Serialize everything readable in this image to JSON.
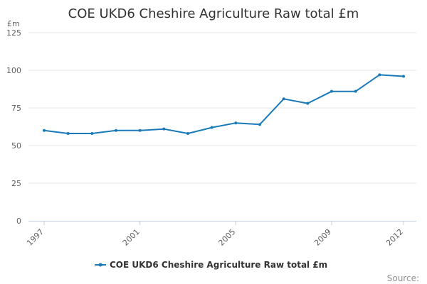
{
  "chart_data": {
    "type": "line",
    "title": "COE UKD6 Cheshire Agriculture Raw total £m",
    "ylabel": "£m",
    "xlabel": "",
    "ylim": [
      0,
      125
    ],
    "y_ticks": [
      0,
      25,
      50,
      75,
      100,
      125
    ],
    "y_tick_labels": [
      "0",
      "25",
      "50",
      "75",
      "100",
      "125"
    ],
    "x_tick_labels": [
      "1997",
      "2001",
      "2005",
      "2009",
      "2012"
    ],
    "x_tick_values": [
      1997,
      2001,
      2005,
      2009,
      2012
    ],
    "grid": true,
    "legend_position": "bottom-center",
    "source_label": "Source:",
    "series": [
      {
        "name": "COE UKD6 Cheshire Agriculture Raw total £m",
        "color": "#1a7ab8",
        "x": [
          1997,
          1998,
          1999,
          2000,
          2001,
          2002,
          2003,
          2004,
          2005,
          2006,
          2007,
          2008,
          2009,
          2010,
          2011,
          2012
        ],
        "values": [
          60,
          58,
          58,
          60,
          60,
          61,
          58,
          62,
          65,
          64,
          81,
          78,
          86,
          86,
          97,
          96
        ]
      }
    ]
  }
}
